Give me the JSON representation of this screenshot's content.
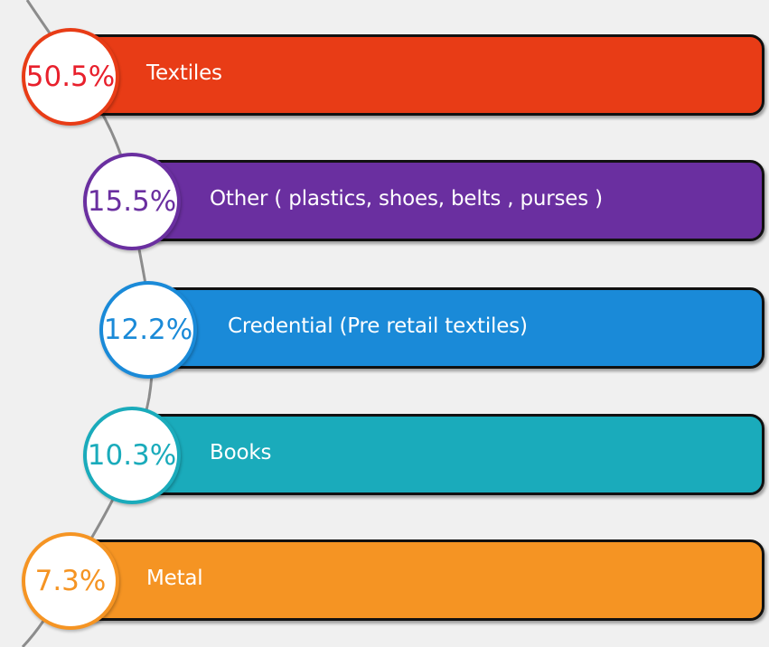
{
  "chart_data": {
    "type": "bar",
    "categories": [
      "Textiles",
      "Other ( plastics, shoes, belts , purses )",
      "Credential (Pre retail textiles)",
      "Books",
      "Metal"
    ],
    "series": [
      {
        "values": [
          50.5,
          15.5,
          12.2,
          10.3,
          7.3
        ],
        "value_labels": [
          "50.5%",
          "15.5%",
          "12.2%",
          "10.3%",
          "7.3%"
        ]
      }
    ],
    "unit": "%",
    "colors": [
      "#e83c16",
      "#6a2fa0",
      "#1a8ad8",
      "#1aabbb",
      "#f59423"
    ],
    "label_colors": [
      "#e8202c",
      "#6a2fa0",
      "#1a8ad8",
      "#1aabbb",
      "#f59423"
    ],
    "orientation": "horizontal",
    "connector_color": "#8c8c8c"
  }
}
